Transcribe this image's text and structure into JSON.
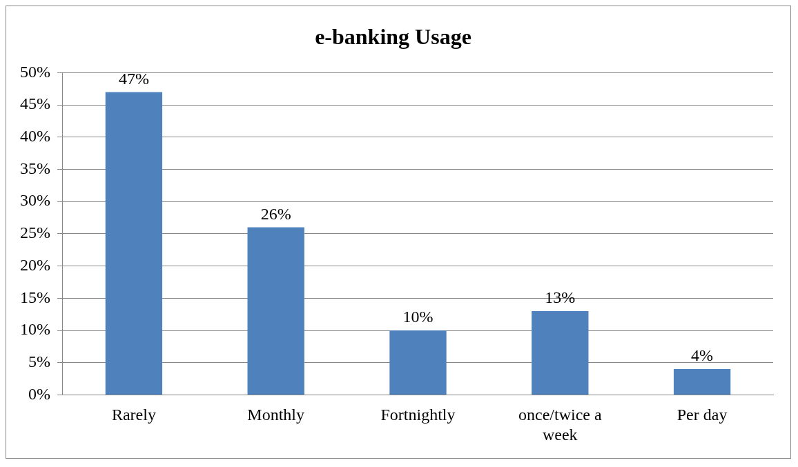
{
  "chart_data": {
    "type": "bar",
    "title": "e-banking Usage",
    "categories": [
      "Rarely",
      "Monthly",
      "Fortnightly",
      "once/twice a week",
      "Per day"
    ],
    "values": [
      47,
      26,
      10,
      13,
      4
    ],
    "value_labels": [
      "47%",
      "26%",
      "10%",
      "13%",
      "4%"
    ],
    "color": "#4f81bd",
    "ylim": [
      0,
      50
    ],
    "yticks": [
      {
        "value": 0,
        "label": "0%"
      },
      {
        "value": 5,
        "label": "5%"
      },
      {
        "value": 10,
        "label": "10%"
      },
      {
        "value": 15,
        "label": "15%"
      },
      {
        "value": 20,
        "label": "20%"
      },
      {
        "value": 25,
        "label": "25%"
      },
      {
        "value": 30,
        "label": "30%"
      },
      {
        "value": 35,
        "label": "35%"
      },
      {
        "value": 40,
        "label": "40%"
      },
      {
        "value": 45,
        "label": "45%"
      },
      {
        "value": 50,
        "label": "50%"
      }
    ],
    "grid": "y",
    "legend": false
  }
}
